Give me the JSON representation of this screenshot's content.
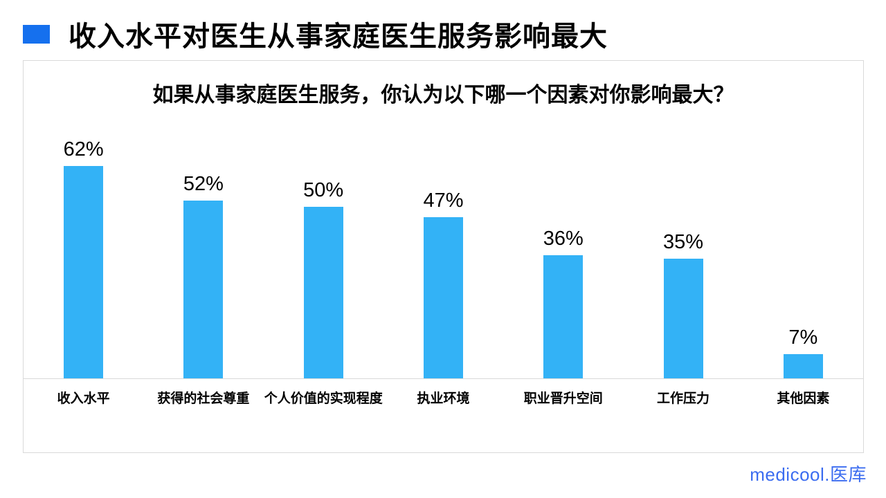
{
  "header": {
    "title": "收入水平对医生从事家庭医生服务影响最大"
  },
  "chart_data": {
    "type": "bar",
    "title": "如果从事家庭医生服务，你认为以下哪一个因素对你影响最大？",
    "categories": [
      "收入水平",
      "获得的社会尊重",
      "个人价值的实现程度",
      "执业环境",
      "职业晋升空间",
      "工作压力",
      "其他因素"
    ],
    "values": [
      62,
      52,
      50,
      47,
      36,
      35,
      7
    ],
    "value_labels": [
      "62%",
      "52%",
      "50%",
      "47%",
      "36%",
      "35%",
      "7%"
    ],
    "unit": "%",
    "xlabel": "",
    "ylabel": "",
    "ylim": [
      0,
      100
    ],
    "grid": false,
    "legend": "none",
    "bar_color": "#33B2F6"
  },
  "footer": {
    "logo_text": "medicool.医库"
  },
  "colors": {
    "accent": "#1570EE",
    "bar": "#33B2F6",
    "logo": "#3B6CF0",
    "border": "#D9D9D9"
  }
}
